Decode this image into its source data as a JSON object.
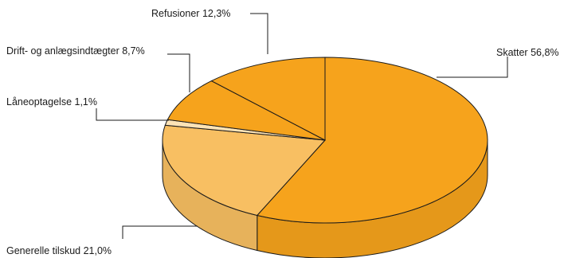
{
  "chart_data": {
    "type": "pie",
    "style": "3d",
    "title": "",
    "slices": [
      {
        "label": "Skatter",
        "value": 56.8,
        "value_text": "56,8%",
        "color": "#f6a31c"
      },
      {
        "label": "Generelle tilskud",
        "value": 21.0,
        "value_text": "21,0%",
        "color": "#f8bf62"
      },
      {
        "label": "Låneoptagelse",
        "value": 1.1,
        "value_text": "1,1%",
        "color": "#fde3b6"
      },
      {
        "label": "Drift- og anlægsindtægter",
        "value": 8.7,
        "value_text": "8,7%",
        "color": "#f6a31c"
      },
      {
        "label": "Refusioner",
        "value": 12.3,
        "value_text": "12,3%",
        "color": "#f6a31c"
      }
    ]
  }
}
